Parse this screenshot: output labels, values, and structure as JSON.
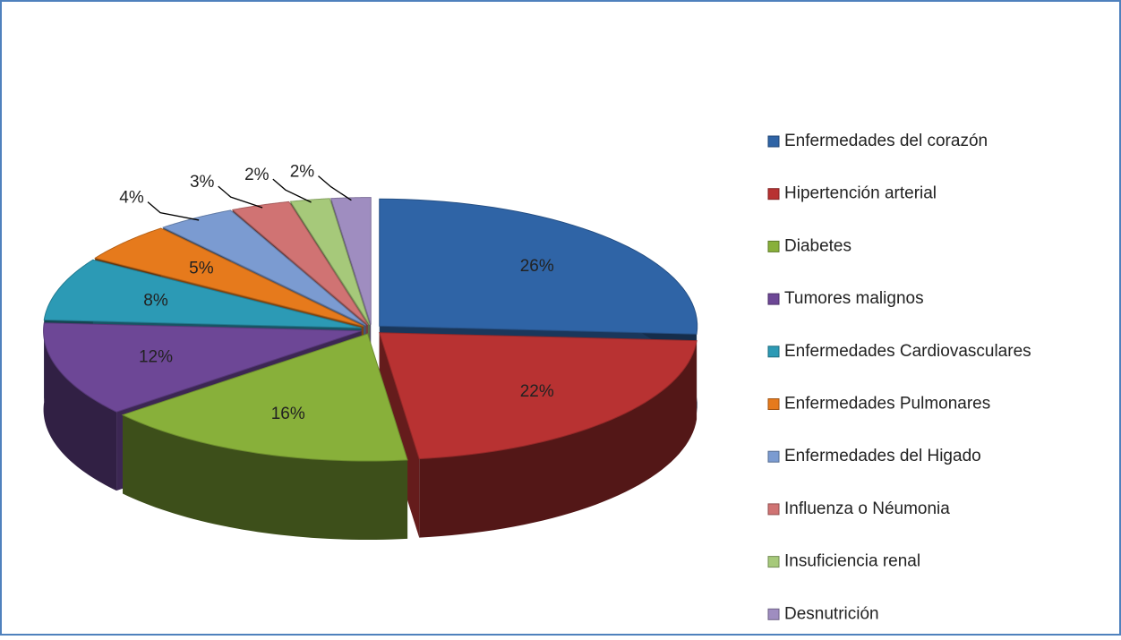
{
  "chart_data": {
    "type": "pie",
    "categories": [
      "Enfermedades del corazón",
      "Hipertención arterial",
      "Diabetes",
      "Tumores malignos",
      "Enfermedades Cardiovasculares",
      "Enfermedades Pulmonares",
      "Enfermedades del Higado",
      "Influenza o Néumonia",
      "Insuficiencia renal",
      "Desnutrición"
    ],
    "values": [
      26,
      22,
      16,
      12,
      8,
      5,
      4,
      3,
      2,
      2
    ],
    "value_labels": [
      "26%",
      "22%",
      "16%",
      "12%",
      "8%",
      "5%",
      "4%",
      "3%",
      "2%",
      "2%"
    ],
    "colors": [
      "#2f64a6",
      "#b83232",
      "#88b03a",
      "#6d4796",
      "#2c9ab5",
      "#e67a1c",
      "#7b9bd1",
      "#d07373",
      "#a6c97a",
      "#9f8dc0"
    ],
    "legend": "right"
  }
}
